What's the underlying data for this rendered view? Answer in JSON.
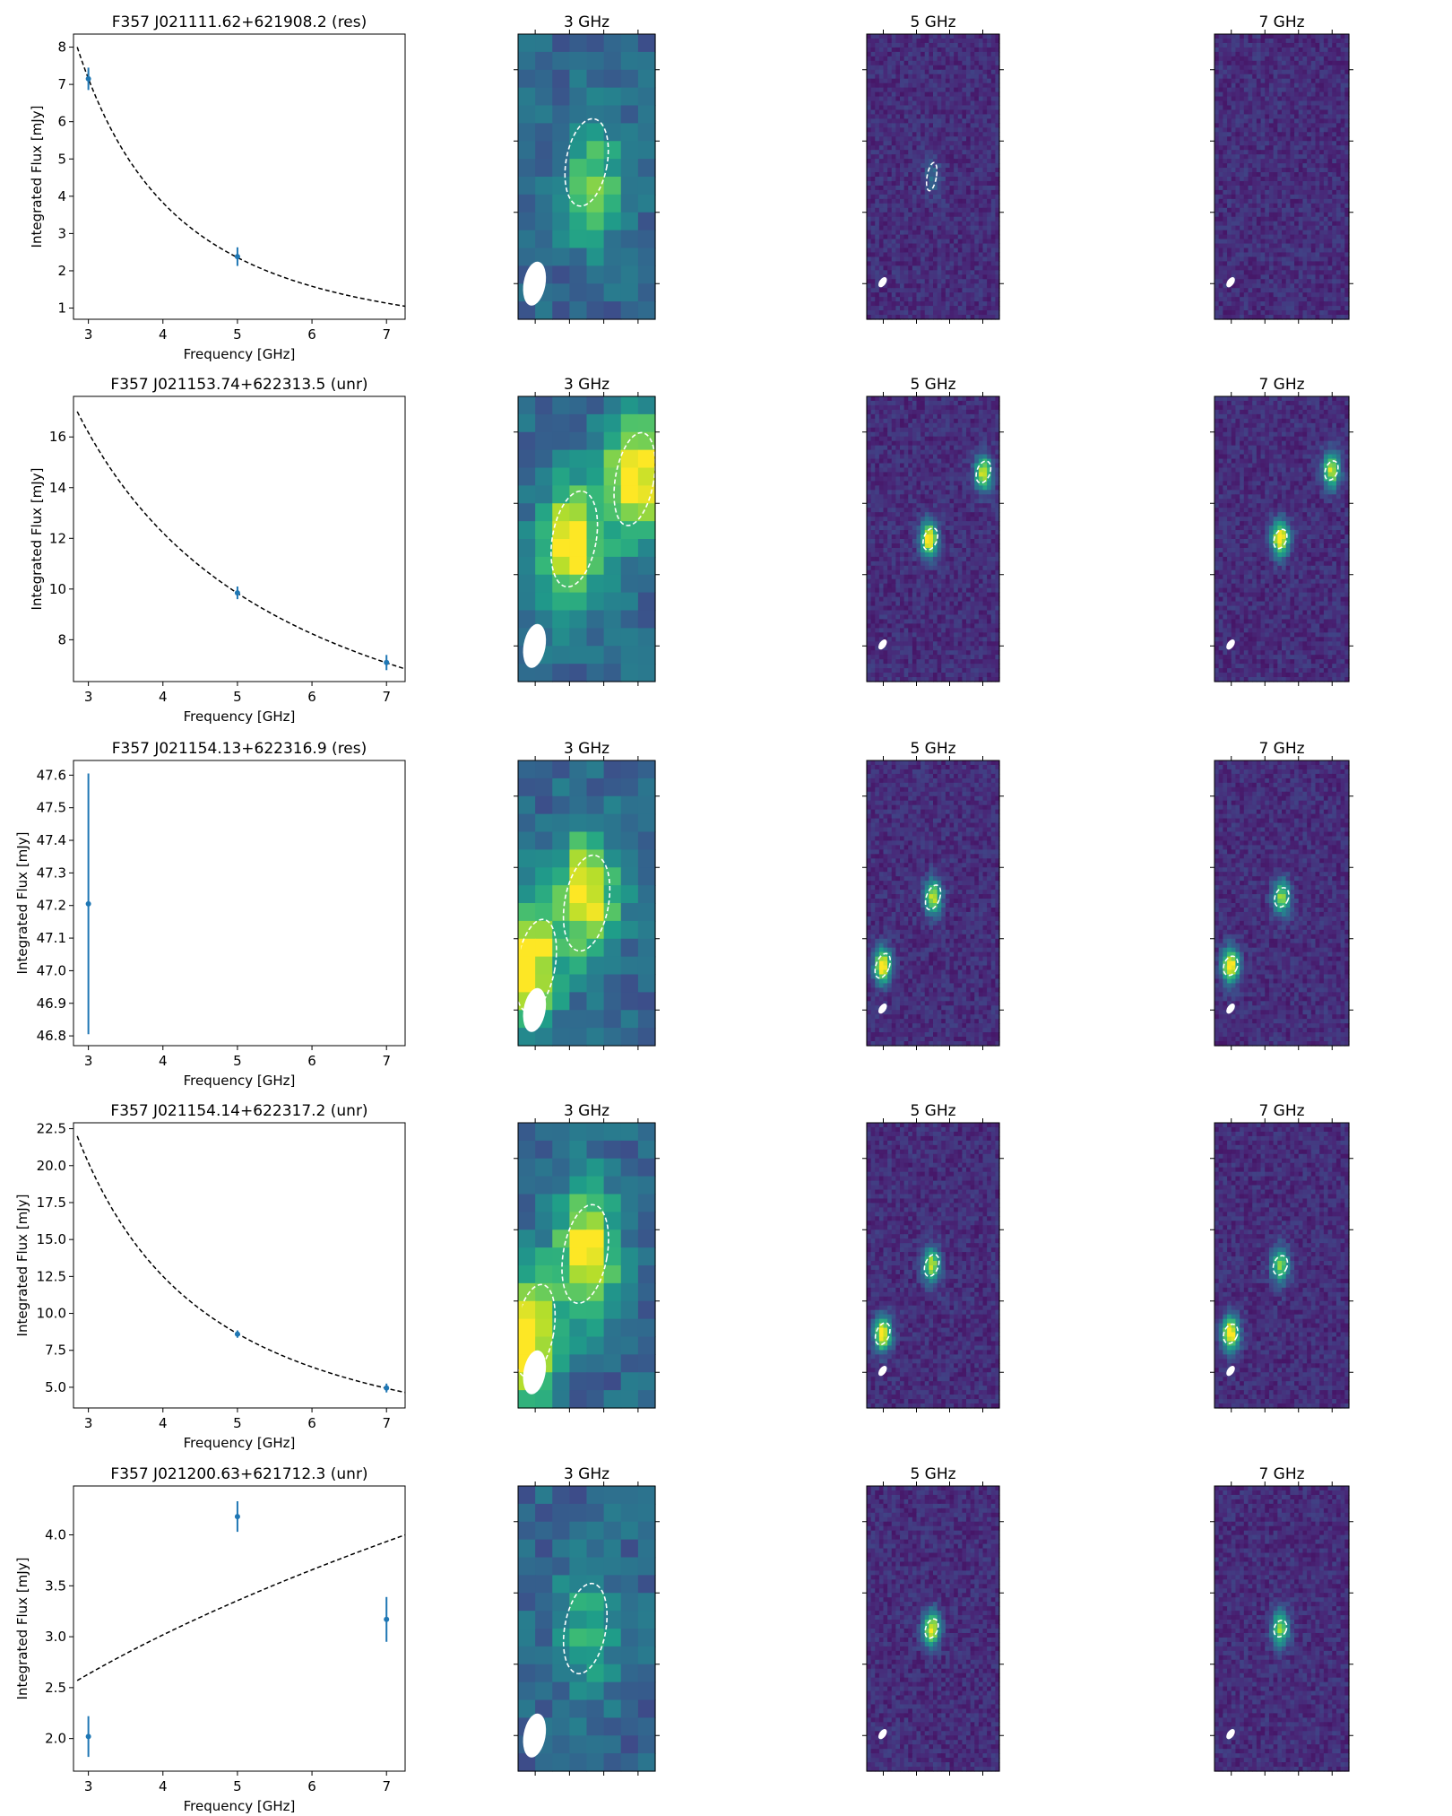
{
  "colors": {
    "marker": "#1f77b4",
    "fit_line": "#000000",
    "ellipse": "#ffffff",
    "viridis_low": "#440154",
    "viridis_mid": "#21918c",
    "viridis_high": "#fde725"
  },
  "chart_data": [
    {
      "type": "scatter",
      "title": "F357 J021111.62+621908.2 (res)",
      "xlabel": "Frequency [GHz]",
      "ylabel": "Integrated Flux [mJy]",
      "xlim": [
        2.8,
        7.25
      ],
      "ylim": [
        0.7,
        8.35
      ],
      "xticks": [
        3,
        4,
        5,
        6,
        7
      ],
      "yticks": [
        1,
        2,
        3,
        4,
        5,
        6,
        7,
        8
      ],
      "tick_decimals": 0,
      "points": [
        {
          "x": 3,
          "y": 7.15,
          "err": 0.3
        },
        {
          "x": 5,
          "y": 2.38,
          "err": 0.25
        }
      ],
      "fit": {
        "style": "dashed",
        "kind": "power_law",
        "x0": 2.85,
        "y0": 8.0,
        "x1": 7.25,
        "y1": 1.05
      },
      "maps": [
        {
          "title": "3 GHz",
          "kind": "low_res",
          "seed": 11,
          "sources": [
            {
              "x": 0.55,
              "y": 0.53,
              "amp": 0.45
            }
          ],
          "ellipses": [
            {
              "cx": 0.5,
              "cy": 0.45,
              "rx": 0.15,
              "ry": 0.155,
              "rot": 10
            }
          ],
          "beam": {
            "cx": 0.12,
            "cy": 0.875,
            "rx": 0.08,
            "ry": 0.078,
            "rot": 10
          }
        },
        {
          "title": "5 GHz",
          "kind": "high_res",
          "seed": 12,
          "sources": [
            {
              "x": 0.5,
              "y": 0.5,
              "amp": 0.22
            }
          ],
          "ellipses": [
            {
              "cx": 0.49,
              "cy": 0.5,
              "rx": 0.035,
              "ry": 0.05,
              "rot": 10
            }
          ],
          "beam": {
            "cx": 0.12,
            "cy": 0.87,
            "rx": 0.025,
            "ry": 0.02,
            "rot": 35
          }
        },
        {
          "title": "7 GHz",
          "kind": "high_res",
          "seed": 13,
          "sources": [],
          "ellipses": [],
          "beam": {
            "cx": 0.12,
            "cy": 0.87,
            "rx": 0.025,
            "ry": 0.02,
            "rot": 35
          }
        }
      ]
    },
    {
      "type": "scatter",
      "title": "F357 J021153.74+622313.5 (unr)",
      "xlabel": "Frequency [GHz]",
      "ylabel": "Integrated Flux [mJy]",
      "xlim": [
        2.8,
        7.25
      ],
      "ylim": [
        6.35,
        17.6
      ],
      "xticks": [
        3,
        4,
        5,
        6,
        7
      ],
      "yticks": [
        8,
        10,
        12,
        14,
        16
      ],
      "tick_decimals": 0,
      "points": [
        {
          "x": 5,
          "y": 9.85,
          "err": 0.25
        },
        {
          "x": 7,
          "y": 7.1,
          "err": 0.3
        }
      ],
      "fit": {
        "style": "dashed",
        "kind": "power_law",
        "x0": 2.85,
        "y0": 17.0,
        "x1": 7.25,
        "y1": 6.85
      },
      "maps": [
        {
          "title": "3 GHz",
          "kind": "low_res",
          "seed": 21,
          "sources": [
            {
              "x": 0.38,
              "y": 0.52,
              "amp": 0.75
            },
            {
              "x": 0.85,
              "y": 0.28,
              "amp": 0.8
            }
          ],
          "ellipses": [
            {
              "cx": 0.41,
              "cy": 0.5,
              "rx": 0.16,
              "ry": 0.17,
              "rot": 10
            },
            {
              "cx": 0.85,
              "cy": 0.29,
              "rx": 0.14,
              "ry": 0.165,
              "rot": 10
            }
          ],
          "beam": {
            "cx": 0.12,
            "cy": 0.875,
            "rx": 0.08,
            "ry": 0.078,
            "rot": 10
          }
        },
        {
          "title": "5 GHz",
          "kind": "high_res",
          "seed": 22,
          "sources": [
            {
              "x": 0.47,
              "y": 0.5,
              "amp": 0.95
            },
            {
              "x": 0.88,
              "y": 0.27,
              "amp": 0.85
            }
          ],
          "ellipses": [
            {
              "cx": 0.48,
              "cy": 0.5,
              "rx": 0.05,
              "ry": 0.04,
              "rot": 20
            },
            {
              "cx": 0.88,
              "cy": 0.265,
              "rx": 0.05,
              "ry": 0.04,
              "rot": 20
            }
          ],
          "beam": {
            "cx": 0.12,
            "cy": 0.87,
            "rx": 0.025,
            "ry": 0.02,
            "rot": 35
          }
        },
        {
          "title": "7 GHz",
          "kind": "high_res",
          "seed": 23,
          "sources": [
            {
              "x": 0.49,
              "y": 0.5,
              "amp": 0.95
            },
            {
              "x": 0.87,
              "y": 0.26,
              "amp": 0.8
            }
          ],
          "ellipses": [
            {
              "cx": 0.49,
              "cy": 0.5,
              "rx": 0.045,
              "ry": 0.035,
              "rot": 20
            },
            {
              "cx": 0.87,
              "cy": 0.26,
              "rx": 0.045,
              "ry": 0.035,
              "rot": 20
            }
          ],
          "beam": {
            "cx": 0.12,
            "cy": 0.87,
            "rx": 0.025,
            "ry": 0.02,
            "rot": 35
          }
        }
      ]
    },
    {
      "type": "scatter",
      "title": "F357 J021154.13+622316.9 (res)",
      "xlabel": "Frequency [GHz]",
      "ylabel": "Integrated Flux [mJy]",
      "xlim": [
        2.8,
        7.25
      ],
      "ylim": [
        46.77,
        47.645
      ],
      "xticks": [
        3,
        4,
        5,
        6,
        7
      ],
      "yticks": [
        46.8,
        46.9,
        47.0,
        47.1,
        47.2,
        47.3,
        47.4,
        47.5,
        47.6
      ],
      "tick_decimals": 1,
      "points": [
        {
          "x": 3,
          "y": 47.205,
          "err": 0.4
        }
      ],
      "fit": null,
      "maps": [
        {
          "title": "3 GHz",
          "kind": "low_res",
          "seed": 31,
          "sources": [
            {
              "x": 0.5,
              "y": 0.47,
              "amp": 0.7
            },
            {
              "x": 0.05,
              "y": 0.72,
              "amp": 0.85
            }
          ],
          "ellipses": [
            {
              "cx": 0.5,
              "cy": 0.5,
              "rx": 0.16,
              "ry": 0.17,
              "rot": 10
            },
            {
              "cx": 0.13,
              "cy": 0.72,
              "rx": 0.14,
              "ry": 0.165,
              "rot": 10
            }
          ],
          "beam": {
            "cx": 0.12,
            "cy": 0.875,
            "rx": 0.08,
            "ry": 0.078,
            "rot": 10
          }
        },
        {
          "title": "5 GHz",
          "kind": "high_res",
          "seed": 32,
          "sources": [
            {
              "x": 0.5,
              "y": 0.48,
              "amp": 0.8
            },
            {
              "x": 0.12,
              "y": 0.72,
              "amp": 0.95
            }
          ],
          "ellipses": [
            {
              "cx": 0.5,
              "cy": 0.48,
              "rx": 0.05,
              "ry": 0.045,
              "rot": 20
            },
            {
              "cx": 0.12,
              "cy": 0.72,
              "rx": 0.05,
              "ry": 0.045,
              "rot": 20
            }
          ],
          "beam": {
            "cx": 0.12,
            "cy": 0.87,
            "rx": 0.025,
            "ry": 0.02,
            "rot": 35
          }
        },
        {
          "title": "7 GHz",
          "kind": "high_res",
          "seed": 33,
          "sources": [
            {
              "x": 0.5,
              "y": 0.48,
              "amp": 0.7
            },
            {
              "x": 0.12,
              "y": 0.72,
              "amp": 0.95
            }
          ],
          "ellipses": [
            {
              "cx": 0.5,
              "cy": 0.48,
              "rx": 0.05,
              "ry": 0.035,
              "rot": 20
            },
            {
              "cx": 0.12,
              "cy": 0.72,
              "rx": 0.05,
              "ry": 0.035,
              "rot": 20
            }
          ],
          "beam": {
            "cx": 0.12,
            "cy": 0.87,
            "rx": 0.025,
            "ry": 0.02,
            "rot": 35
          }
        }
      ]
    },
    {
      "type": "scatter",
      "title": "F357 J021154.14+622317.2 (unr)",
      "xlabel": "Frequency [GHz]",
      "ylabel": "Integrated Flux [mJy]",
      "xlim": [
        2.8,
        7.25
      ],
      "ylim": [
        3.6,
        22.9
      ],
      "xticks": [
        3,
        4,
        5,
        6,
        7
      ],
      "yticks": [
        5.0,
        7.5,
        10.0,
        12.5,
        15.0,
        17.5,
        20.0,
        22.5
      ],
      "tick_decimals": 1,
      "points": [
        {
          "x": 5,
          "y": 8.6,
          "err": 0.25
        },
        {
          "x": 7,
          "y": 4.95,
          "err": 0.3
        }
      ],
      "fit": {
        "style": "dashed",
        "kind": "power_law",
        "x0": 2.85,
        "y0": 22.0,
        "x1": 7.25,
        "y1": 4.65
      },
      "maps": [
        {
          "title": "3 GHz",
          "kind": "low_res",
          "seed": 41,
          "sources": [
            {
              "x": 0.5,
              "y": 0.45,
              "amp": 0.75
            },
            {
              "x": 0.05,
              "y": 0.75,
              "amp": 0.85
            }
          ],
          "ellipses": [
            {
              "cx": 0.49,
              "cy": 0.46,
              "rx": 0.16,
              "ry": 0.175,
              "rot": 10
            },
            {
              "cx": 0.12,
              "cy": 0.73,
              "rx": 0.14,
              "ry": 0.165,
              "rot": 10
            }
          ],
          "beam": {
            "cx": 0.12,
            "cy": 0.875,
            "rx": 0.08,
            "ry": 0.078,
            "rot": 10
          }
        },
        {
          "title": "5 GHz",
          "kind": "high_res",
          "seed": 42,
          "sources": [
            {
              "x": 0.49,
              "y": 0.5,
              "amp": 0.8
            },
            {
              "x": 0.12,
              "y": 0.74,
              "amp": 0.95
            }
          ],
          "ellipses": [
            {
              "cx": 0.49,
              "cy": 0.5,
              "rx": 0.05,
              "ry": 0.04,
              "rot": 20
            },
            {
              "cx": 0.12,
              "cy": 0.74,
              "rx": 0.05,
              "ry": 0.04,
              "rot": 20
            }
          ],
          "beam": {
            "cx": 0.12,
            "cy": 0.87,
            "rx": 0.025,
            "ry": 0.02,
            "rot": 35
          }
        },
        {
          "title": "7 GHz",
          "kind": "high_res",
          "seed": 43,
          "sources": [
            {
              "x": 0.49,
              "y": 0.5,
              "amp": 0.7
            },
            {
              "x": 0.12,
              "y": 0.74,
              "amp": 0.95
            }
          ],
          "ellipses": [
            {
              "cx": 0.49,
              "cy": 0.5,
              "rx": 0.05,
              "ry": 0.035,
              "rot": 20
            },
            {
              "cx": 0.12,
              "cy": 0.74,
              "rx": 0.05,
              "ry": 0.035,
              "rot": 20
            }
          ],
          "beam": {
            "cx": 0.12,
            "cy": 0.87,
            "rx": 0.025,
            "ry": 0.02,
            "rot": 35
          }
        }
      ]
    },
    {
      "type": "scatter",
      "title": "F357 J021200.63+621712.3 (unr)",
      "xlabel": "Frequency [GHz]",
      "ylabel": "Integrated Flux [mJy]",
      "xlim": [
        2.8,
        7.25
      ],
      "ylim": [
        1.68,
        4.48
      ],
      "xticks": [
        3,
        4,
        5,
        6,
        7
      ],
      "yticks": [
        2.0,
        2.5,
        3.0,
        3.5,
        4.0
      ],
      "tick_decimals": 1,
      "points": [
        {
          "x": 3,
          "y": 2.02,
          "err": 0.2
        },
        {
          "x": 5,
          "y": 4.18,
          "err": 0.15
        },
        {
          "x": 7,
          "y": 3.17,
          "err": 0.22
        }
      ],
      "fit": {
        "style": "dashed",
        "kind": "power_law",
        "x0": 2.85,
        "y0": 2.57,
        "x1": 7.25,
        "y1": 4.0
      },
      "maps": [
        {
          "title": "3 GHz",
          "kind": "low_res",
          "seed": 51,
          "sources": [
            {
              "x": 0.5,
              "y": 0.5,
              "amp": 0.3
            }
          ],
          "ellipses": [
            {
              "cx": 0.49,
              "cy": 0.5,
              "rx": 0.15,
              "ry": 0.16,
              "rot": 10
            }
          ],
          "beam": {
            "cx": 0.12,
            "cy": 0.875,
            "rx": 0.08,
            "ry": 0.078,
            "rot": 10
          }
        },
        {
          "title": "5 GHz",
          "kind": "high_res",
          "seed": 52,
          "sources": [
            {
              "x": 0.49,
              "y": 0.5,
              "amp": 0.85
            }
          ],
          "ellipses": [
            {
              "cx": 0.49,
              "cy": 0.5,
              "rx": 0.045,
              "ry": 0.035,
              "rot": 20
            }
          ],
          "beam": {
            "cx": 0.12,
            "cy": 0.87,
            "rx": 0.025,
            "ry": 0.02,
            "rot": 35
          }
        },
        {
          "title": "7 GHz",
          "kind": "high_res",
          "seed": 53,
          "sources": [
            {
              "x": 0.49,
              "y": 0.5,
              "amp": 0.7
            }
          ],
          "ellipses": [
            {
              "cx": 0.49,
              "cy": 0.5,
              "rx": 0.045,
              "ry": 0.03,
              "rot": 20
            }
          ],
          "beam": {
            "cx": 0.12,
            "cy": 0.87,
            "rx": 0.025,
            "ry": 0.02,
            "rot": 35
          }
        }
      ]
    }
  ]
}
